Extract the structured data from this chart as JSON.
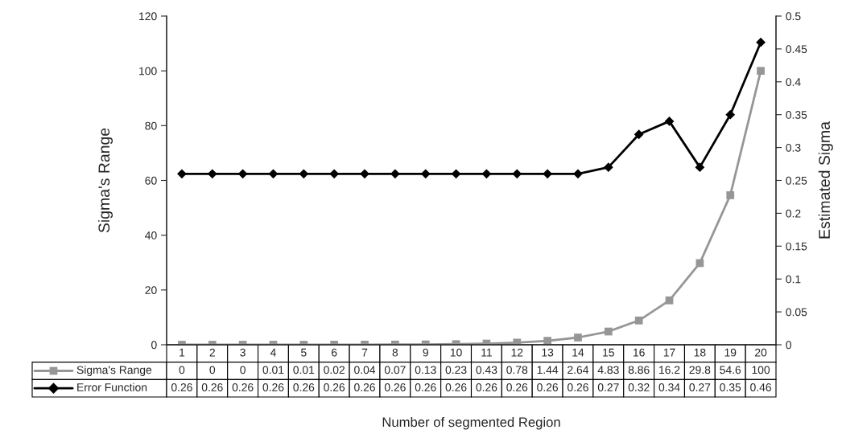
{
  "chart_data": {
    "type": "line",
    "xlabel": "Number of segmented Region",
    "ylabel": "Sigma's Range",
    "y2label": "Estimated Sigma",
    "categories": [
      "1",
      "2",
      "3",
      "4",
      "5",
      "6",
      "7",
      "8",
      "9",
      "10",
      "11",
      "12",
      "13",
      "14",
      "15",
      "16",
      "17",
      "18",
      "19",
      "20"
    ],
    "series": [
      {
        "name": "Sigma's Range",
        "color": "#969696",
        "marker": "square",
        "values": [
          0,
          0,
          0,
          0.01,
          0.01,
          0.02,
          0.04,
          0.07,
          0.13,
          0.23,
          0.43,
          0.78,
          1.44,
          2.64,
          4.83,
          8.86,
          16.2,
          29.8,
          54.6,
          100
        ]
      },
      {
        "name": "Error Function",
        "color": "#000000",
        "marker": "diamond",
        "axis": "y2",
        "values": [
          0.26,
          0.26,
          0.26,
          0.26,
          0.26,
          0.26,
          0.26,
          0.26,
          0.26,
          0.26,
          0.26,
          0.26,
          0.26,
          0.26,
          0.27,
          0.32,
          0.34,
          0.27,
          0.35,
          0.46
        ]
      }
    ],
    "ylim": [
      0,
      120
    ],
    "yticks": [
      0,
      20,
      40,
      60,
      80,
      100,
      120
    ],
    "y2lim": [
      0,
      0.5
    ],
    "y2ticks": [
      0,
      0.05,
      0.1,
      0.15,
      0.2,
      0.25,
      0.3,
      0.35,
      0.4,
      0.45,
      0.5
    ],
    "data_labels": true,
    "legend": "bottom",
    "grid": false
  }
}
